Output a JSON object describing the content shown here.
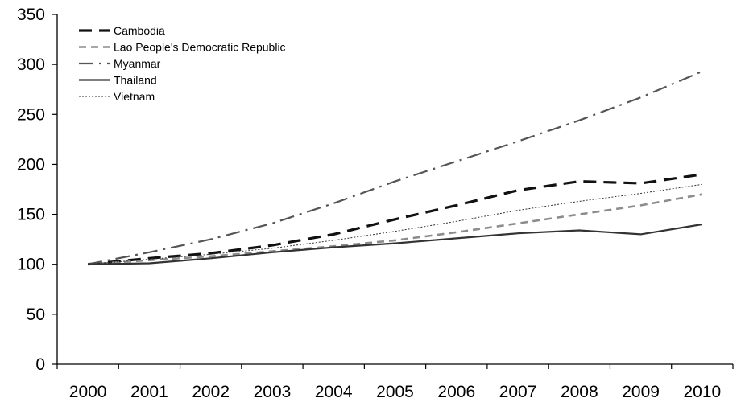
{
  "chart_data": {
    "type": "line",
    "title": "",
    "xlabel": "",
    "ylabel": "",
    "categories": [
      "2000",
      "2001",
      "2002",
      "2003",
      "2004",
      "2005",
      "2006",
      "2007",
      "2008",
      "2009",
      "2010"
    ],
    "ylim": [
      0,
      350
    ],
    "yticks": [
      0,
      50,
      100,
      150,
      200,
      250,
      300,
      350
    ],
    "grid": false,
    "legend_position": "top-left",
    "series": [
      {
        "name": "Cambodia",
        "values": [
          100,
          106,
          111,
          119,
          130,
          145,
          159,
          174,
          183,
          181,
          190
        ],
        "color": "#111111",
        "dash": "long-dash"
      },
      {
        "name": "Lao People's Democratic Republic",
        "values": [
          100,
          104,
          108,
          113,
          118,
          124,
          132,
          141,
          150,
          159,
          170
        ],
        "color": "#8c8c8c",
        "dash": "dash"
      },
      {
        "name": "Myanmar",
        "values": [
          100,
          112,
          125,
          141,
          161,
          183,
          203,
          223,
          244,
          267,
          293
        ],
        "color": "#555555",
        "dash": "dash-dot"
      },
      {
        "name": "Thailand",
        "values": [
          100,
          101,
          106,
          112,
          117,
          121,
          126,
          131,
          134,
          130,
          140
        ],
        "color": "#333333",
        "dash": "solid"
      },
      {
        "name": "Vietnam",
        "values": [
          100,
          105,
          110,
          116,
          124,
          133,
          143,
          154,
          163,
          171,
          180
        ],
        "color": "#333333",
        "dash": "dot"
      }
    ]
  }
}
